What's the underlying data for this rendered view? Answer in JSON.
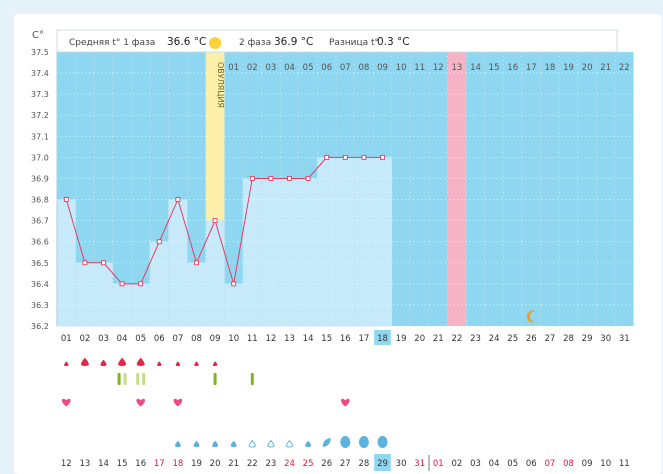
{
  "header": {
    "unit_label": "C°",
    "phase1_label": "Средняя t° 1 фаза",
    "phase1_value": "36.6 °C",
    "phase2_label": "2 фаза",
    "phase2_value": "36.9 °C",
    "diff_label": "Разница t°",
    "diff_value": "0.3 °C"
  },
  "ovulation_label": "ОВУЛЯЦИЯ",
  "colors": {
    "sky": "#8fd7f1",
    "bar": "#c7eafa",
    "line": "#e33d62",
    "ovulation": "#fbefaa",
    "highlight": "#f7b3c6",
    "drop_red": "#e5254a",
    "drop_blue": "#5cb2de",
    "heart": "#ee4b84",
    "mark_green": "#7fb422",
    "mark_light": "#c4de88",
    "sun": "#fbd338",
    "moon": "#ef9b1b",
    "red_date": "#e2173f"
  },
  "chart_data": {
    "type": "line",
    "title": "",
    "ylabel": "C°",
    "ylim": [
      36.2,
      37.5
    ],
    "yticks": [
      "37.5",
      "37.4",
      "37.3",
      "37.2",
      "37.1",
      "37.0",
      "36.9",
      "36.8",
      "36.7",
      "36.6",
      "36.5",
      "36.4",
      "36.3",
      "36.2"
    ],
    "cycle_days": [
      "01",
      "02",
      "03",
      "04",
      "05",
      "06",
      "07",
      "08",
      "09",
      "10",
      "11",
      "12",
      "13",
      "14",
      "15",
      "16",
      "17",
      "18",
      "19",
      "20",
      "21",
      "22",
      "23",
      "24",
      "25",
      "26",
      "27",
      "28",
      "29",
      "30",
      "31"
    ],
    "phase2_days": [
      "01",
      "02",
      "03",
      "04",
      "05",
      "06",
      "07",
      "08",
      "09",
      "10",
      "11",
      "12",
      "13",
      "14",
      "15",
      "16",
      "17",
      "18",
      "19",
      "20",
      "21",
      "22"
    ],
    "temperatures": [
      36.8,
      36.5,
      36.5,
      36.4,
      36.4,
      36.6,
      36.8,
      36.5,
      36.7,
      36.4,
      36.9,
      36.9,
      36.9,
      36.9,
      37.0,
      37.0,
      37.0,
      37.0
    ],
    "ovulation_day": "09",
    "current_day": "18",
    "highlight_day": "22",
    "moon_day": "26",
    "calendar_dates": [
      "12",
      "13",
      "14",
      "15",
      "16",
      "17",
      "18",
      "19",
      "20",
      "21",
      "22",
      "23",
      "24",
      "25",
      "26",
      "27",
      "28",
      "29",
      "30",
      "31",
      "01",
      "02",
      "03",
      "04",
      "05",
      "06",
      "07",
      "08",
      "09",
      "10",
      "11"
    ],
    "red_dates": [
      "17",
      "18",
      "24",
      "25",
      "31",
      "01",
      "07",
      "08"
    ],
    "current_date": "29",
    "red_drops": [
      {
        "day": "01",
        "size": "small"
      },
      {
        "day": "02",
        "size": "large"
      },
      {
        "day": "03",
        "size": "medium"
      },
      {
        "day": "04",
        "size": "large"
      },
      {
        "day": "05",
        "size": "large"
      },
      {
        "day": "06",
        "size": "small"
      },
      {
        "day": "07",
        "size": "small"
      },
      {
        "day": "08",
        "size": "small"
      },
      {
        "day": "09",
        "size": "small"
      }
    ],
    "green_marks": [
      {
        "day": "04",
        "style": "pair_dark"
      },
      {
        "day": "05",
        "style": "pair_light"
      },
      {
        "day": "09",
        "style": "single"
      },
      {
        "day": "11",
        "style": "single"
      }
    ],
    "hearts": [
      "01",
      "05",
      "07",
      "16"
    ],
    "blue_drops": [
      {
        "day": "07",
        "style": "filled"
      },
      {
        "day": "08",
        "style": "filled"
      },
      {
        "day": "09",
        "style": "filled"
      },
      {
        "day": "10",
        "style": "filled"
      },
      {
        "day": "11",
        "style": "outline"
      },
      {
        "day": "12",
        "style": "outline"
      },
      {
        "day": "13",
        "style": "outline"
      },
      {
        "day": "14",
        "style": "filled"
      },
      {
        "day": "15",
        "style": "leaf"
      },
      {
        "day": "16",
        "style": "blob"
      },
      {
        "day": "17",
        "style": "blob"
      },
      {
        "day": "18",
        "style": "blob"
      }
    ]
  }
}
